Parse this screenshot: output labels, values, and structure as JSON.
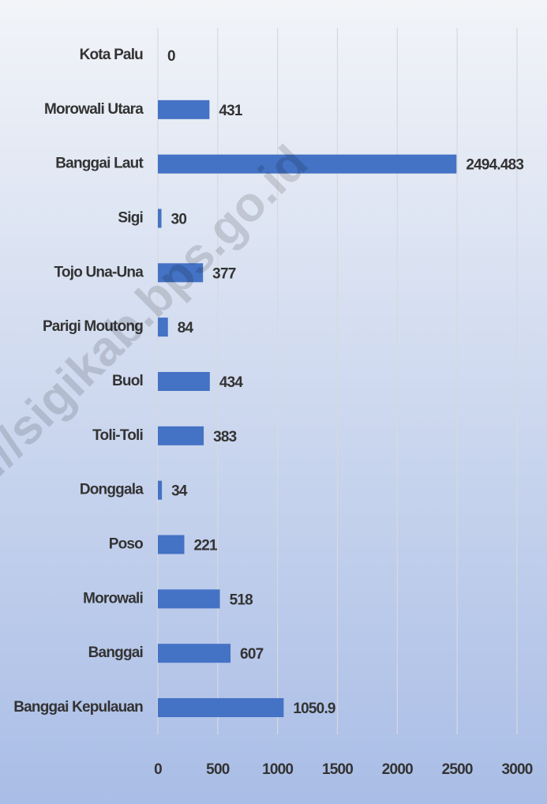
{
  "chart_data": {
    "type": "barh",
    "categories": [
      "Kota Palu",
      "Morowali Utara",
      "Banggai Laut",
      "Sigi",
      "Tojo Una-Una",
      "Parigi Moutong",
      "Buol",
      "Toli-Toli",
      "Donggala",
      "Poso",
      "Morowali",
      "Banggai",
      "Banggai Kepulauan"
    ],
    "values": [
      0,
      431,
      2494.483,
      30,
      377,
      84,
      434,
      383,
      34,
      221,
      518,
      607,
      1050.9
    ],
    "color": "#4472c4",
    "xlim": [
      0,
      3000
    ],
    "xticks": [
      0,
      500,
      1000,
      1500,
      2000,
      2500,
      3000
    ],
    "grid": true,
    "watermark": "s://sigikab.bps.go.id"
  }
}
